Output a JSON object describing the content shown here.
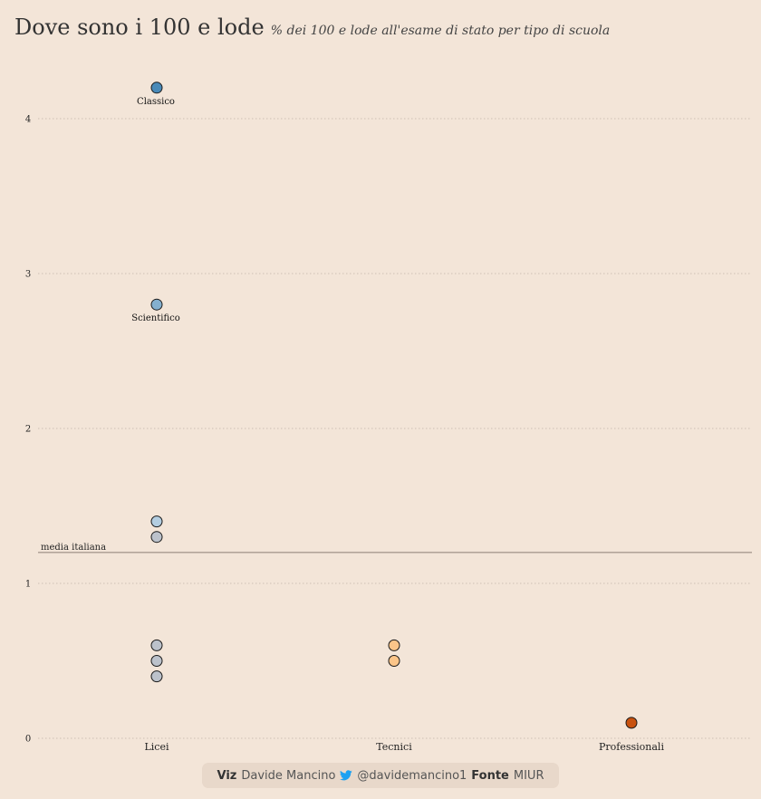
{
  "header": {
    "title": "Dove sono i 100 e lode",
    "subtitle": "% dei 100 e lode all'esame di stato per tipo di scuola"
  },
  "chart_data": {
    "type": "scatter",
    "title": "Dove sono i 100 e lode",
    "subtitle": "% dei 100 e lode all'esame di stato per tipo di scuola",
    "categories": [
      "Licei",
      "Tecnici",
      "Professionali"
    ],
    "ylim": [
      0,
      4.3
    ],
    "yticks": [
      0,
      1,
      2,
      3,
      4
    ],
    "grid": "horizontal dotted",
    "reference_line": {
      "label": "media italiana",
      "value": 1.2,
      "color": "#a89a90"
    },
    "points": [
      {
        "category": "Licei",
        "value": 4.2,
        "label": "Classico",
        "color": "#4a8ab8"
      },
      {
        "category": "Licei",
        "value": 2.8,
        "label": "Scientifico",
        "color": "#84b0cf"
      },
      {
        "category": "Licei",
        "value": 1.4,
        "label": "",
        "color": "#b3cde0"
      },
      {
        "category": "Licei",
        "value": 1.3,
        "label": "",
        "color": "#bcc2cb"
      },
      {
        "category": "Licei",
        "value": 0.6,
        "label": "",
        "color": "#bcc2cb"
      },
      {
        "category": "Licei",
        "value": 0.5,
        "label": "",
        "color": "#bcc2cb"
      },
      {
        "category": "Licei",
        "value": 0.4,
        "label": "",
        "color": "#bcc2cb"
      },
      {
        "category": "Tecnici",
        "value": 0.6,
        "label": "",
        "color": "#fbc589"
      },
      {
        "category": "Tecnici",
        "value": 0.5,
        "label": "",
        "color": "#fbc589"
      },
      {
        "category": "Professionali",
        "value": 0.1,
        "label": "",
        "color": "#c8520f"
      }
    ]
  },
  "caption": {
    "viz_label": "Viz",
    "viz_author": "Davide Mancino",
    "twitter_icon": "twitter-bird-icon",
    "twitter_handle": "@davidemancino1",
    "source_label": "Fonte",
    "source": "MIUR",
    "twitter_color": "#1da1f2"
  }
}
